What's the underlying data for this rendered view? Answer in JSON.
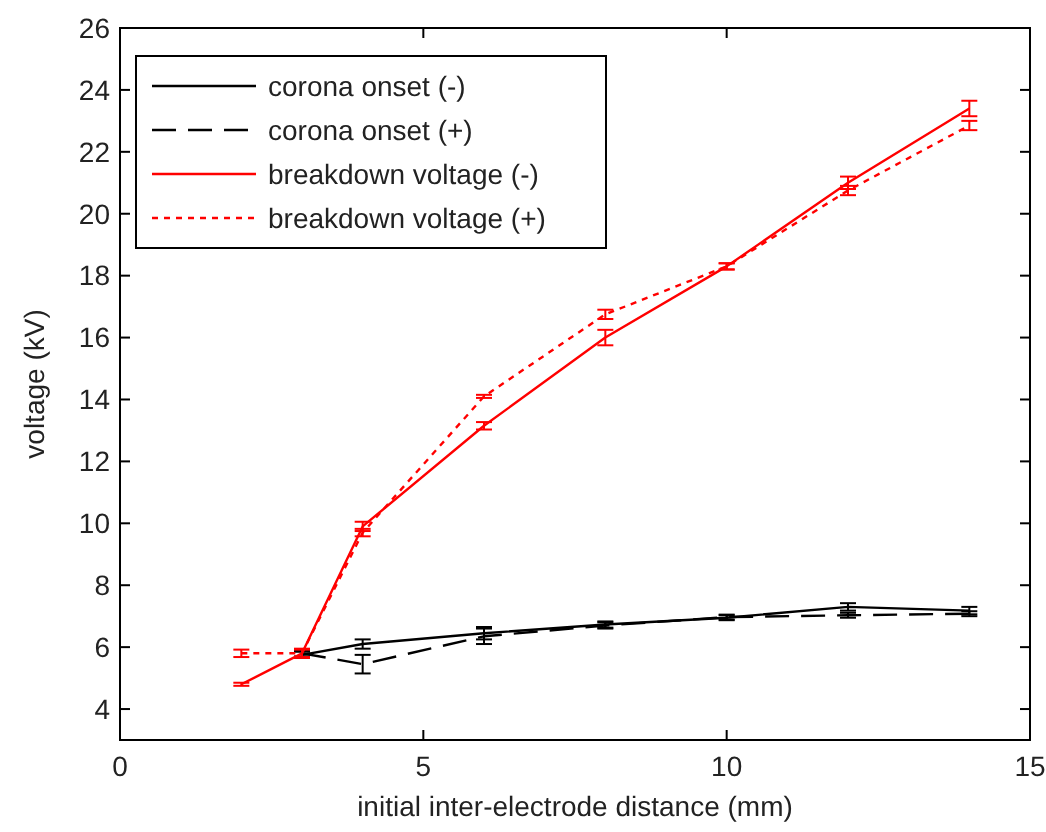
{
  "chart_data": {
    "type": "line",
    "xlabel": "initial inter-electrode distance (mm)",
    "ylabel": "voltage (kV)",
    "xlim": [
      0,
      15
    ],
    "xticks": [
      0,
      5,
      10,
      15
    ],
    "ylim": [
      3,
      26
    ],
    "yticks": [
      4,
      6,
      8,
      10,
      12,
      14,
      16,
      18,
      20,
      22,
      24,
      26
    ],
    "grid": false,
    "legend": "top left",
    "marker": "none",
    "series": [
      {
        "name": "corona onset (-)",
        "color": "#000000",
        "line_style": "solid",
        "x": [
          3,
          4,
          6,
          8,
          10,
          12,
          14
        ],
        "values": [
          5.75,
          6.1,
          6.45,
          6.73,
          6.95,
          7.3,
          7.18
        ],
        "errors": [
          0.1,
          0.15,
          0.2,
          0.1,
          0.08,
          0.12,
          0.12
        ]
      },
      {
        "name": "corona onset (+)",
        "color": "#000000",
        "line_style": "dashed",
        "x": [
          3,
          4,
          6,
          8,
          10,
          12,
          14
        ],
        "values": [
          5.8,
          5.45,
          6.35,
          6.7,
          6.97,
          7.03,
          7.08
        ],
        "errors": [
          0.1,
          0.3,
          0.25,
          0.1,
          0.08,
          0.08,
          0.08
        ]
      },
      {
        "name": "breakdown voltage (-)",
        "color": "#ff0000",
        "line_style": "solid",
        "x": [
          2,
          3,
          4,
          6,
          8,
          10,
          12,
          14
        ],
        "values": [
          4.8,
          5.8,
          9.9,
          13.15,
          16.0,
          18.3,
          21.0,
          23.4
        ],
        "errors": [
          0.05,
          0.15,
          0.15,
          0.12,
          0.25,
          0.1,
          0.2,
          0.25
        ]
      },
      {
        "name": "breakdown voltage (+)",
        "color": "#ff0000",
        "line_style": "dotted",
        "x": [
          2,
          3,
          4,
          6,
          8,
          10,
          12,
          14
        ],
        "values": [
          5.8,
          5.8,
          9.7,
          14.1,
          16.75,
          18.3,
          20.75,
          22.85
        ],
        "errors": [
          0.12,
          0.12,
          0.12,
          0.05,
          0.15,
          0.1,
          0.15,
          0.15
        ]
      }
    ]
  }
}
